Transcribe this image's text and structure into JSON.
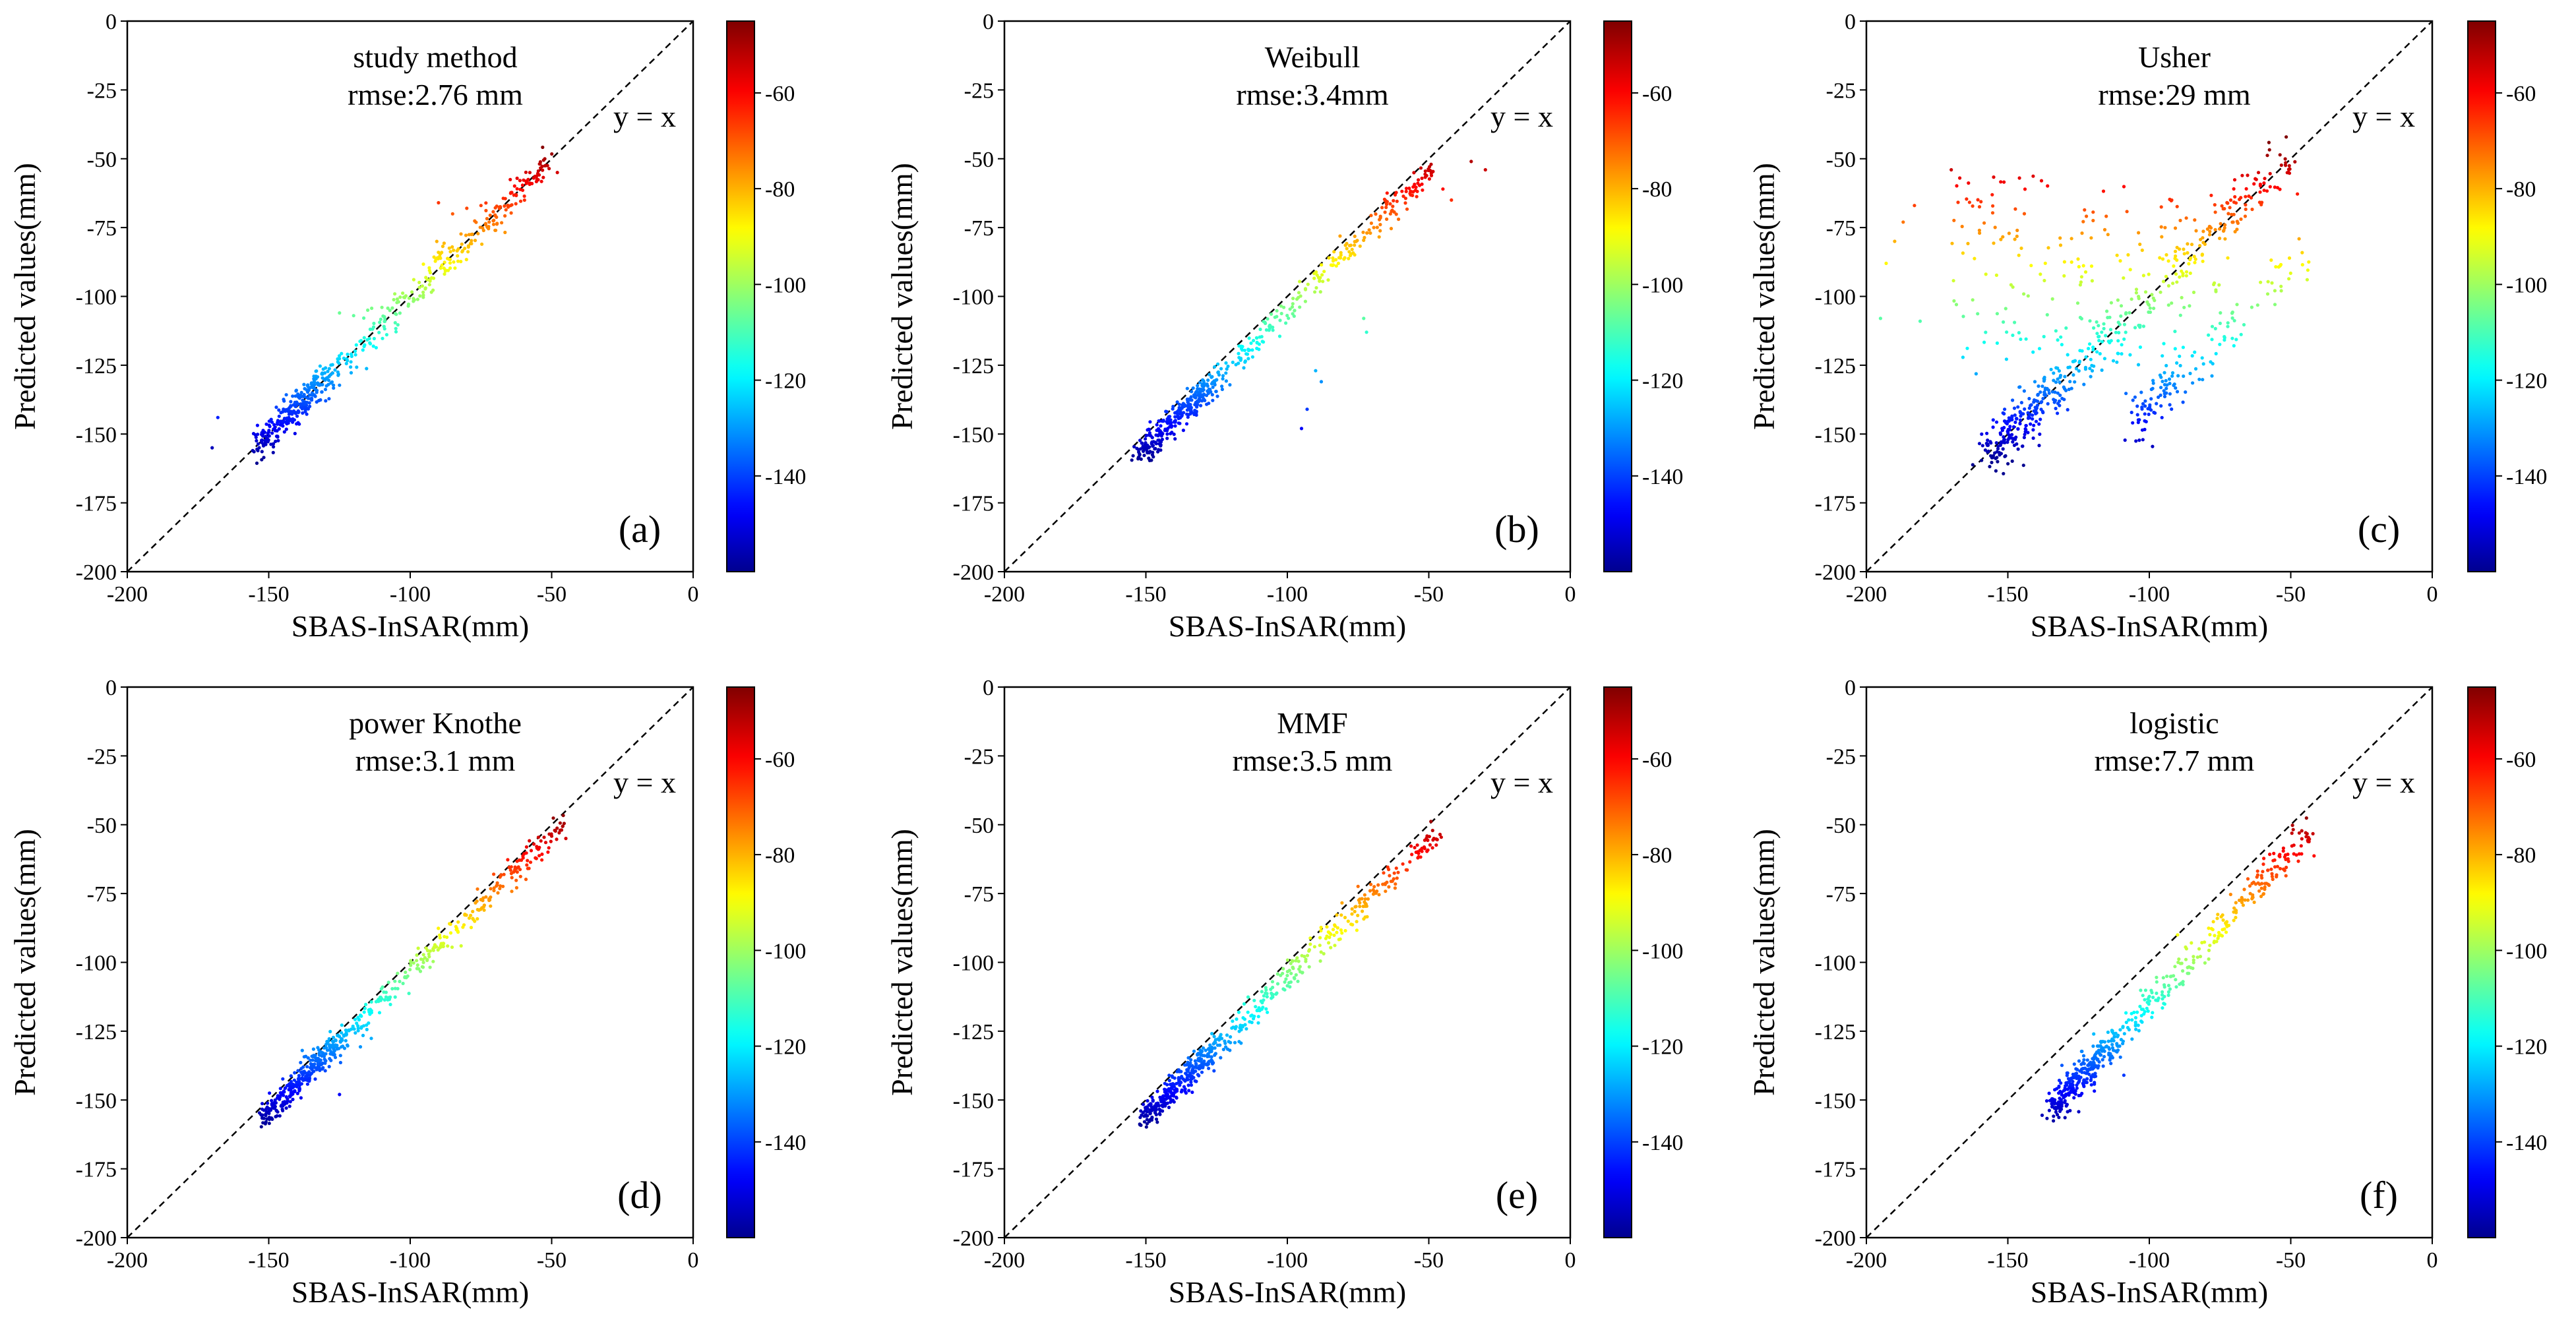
{
  "figure": {
    "shared": {
      "xlabel": "SBAS-InSAR(mm)",
      "ylabel": "Predicted values(mm)",
      "identity_label": "y = x",
      "xlim": [
        -200,
        0
      ],
      "ylim": [
        -200,
        0
      ],
      "x_ticks": [
        -200,
        -150,
        -100,
        -50,
        0
      ],
      "y_ticks": [
        0,
        -25,
        -50,
        -75,
        -100,
        -125,
        -150,
        -175,
        -200
      ],
      "colorbar_ticks": [
        -60,
        -80,
        -100,
        -120,
        -140
      ],
      "colorbar_range": [
        -160,
        -45
      ],
      "colormap": "jet",
      "jet_stops": [
        "#00008f",
        "#0000ff",
        "#00ffff",
        "#ffff00",
        "#ff0000",
        "#800000"
      ]
    }
  },
  "chart_data": [
    {
      "type": "scatter",
      "panel": "(a)",
      "title": "study method",
      "subtitle": "rmse:2.76 mm",
      "xlabel": "SBAS-InSAR(mm)",
      "ylabel": "Predicted values(mm)",
      "xlim": [
        -200,
        0
      ],
      "ylim": [
        -200,
        0
      ],
      "colorbar": {
        "range": [
          -160,
          -45
        ],
        "ticks": [
          -60,
          -80,
          -100,
          -120,
          -140
        ]
      },
      "identity_line": "y = x",
      "series": [
        {
          "name": "main",
          "x_range": [
            -155,
            -50
          ],
          "slope": 1.0,
          "intercept": 0,
          "spread": 3.0,
          "count": 520
        },
        {
          "name": "outliers",
          "points": [
            [
              -170,
              -155
            ],
            [
              -168,
              -144
            ],
            [
              -125,
              -106
            ],
            [
              -120,
              -107
            ],
            [
              -115,
              -105
            ],
            [
              -110,
              -104
            ],
            [
              -90,
              -66
            ],
            [
              -85,
              -70
            ],
            [
              -80,
              -68
            ],
            [
              -75,
              -67
            ],
            [
              -48,
              -55
            ]
          ]
        }
      ]
    },
    {
      "type": "scatter",
      "panel": "(b)",
      "title": "Weibull",
      "subtitle": "rmse:3.4mm",
      "xlabel": "SBAS-InSAR(mm)",
      "ylabel": "Predicted values(mm)",
      "xlim": [
        -200,
        0
      ],
      "ylim": [
        -200,
        0
      ],
      "colorbar": {
        "range": [
          -160,
          -45
        ],
        "ticks": [
          -60,
          -80,
          -100,
          -120,
          -140
        ]
      },
      "identity_line": "y = x",
      "series": [
        {
          "name": "main",
          "x_range": [
            -152,
            -48
          ],
          "slope": 1.0,
          "intercept": -5,
          "spread": 2.5,
          "count": 520
        },
        {
          "name": "outliers",
          "points": [
            [
              -95,
              -148
            ],
            [
              -93,
              -141
            ],
            [
              -90,
              -127
            ],
            [
              -88,
              -131
            ],
            [
              -73,
              -108
            ],
            [
              -72,
              -113
            ],
            [
              -45,
              -61
            ],
            [
              -42,
              -65
            ],
            [
              -35,
              -51
            ],
            [
              -30,
              -54
            ]
          ]
        }
      ]
    },
    {
      "type": "scatter",
      "panel": "(c)",
      "title": "Usher",
      "subtitle": "rmse:29 mm",
      "xlabel": "SBAS-InSAR(mm)",
      "ylabel": "Predicted values(mm)",
      "xlim": [
        -200,
        0
      ],
      "ylim": [
        -200,
        0
      ],
      "colorbar": {
        "range": [
          -160,
          -45
        ],
        "ticks": [
          -60,
          -80,
          -100,
          -120,
          -140
        ]
      },
      "identity_line": "y = x",
      "series": [
        {
          "name": "main",
          "x_range": [
            -158,
            -50
          ],
          "slope": 1.0,
          "intercept": 0,
          "spread": 4.5,
          "count": 420
        },
        {
          "name": "lower band",
          "x_range": [
            -105,
            -45
          ],
          "slope": 1.0,
          "intercept": -40,
          "spread": 5.0,
          "count": 130
        },
        {
          "name": "scatter cloud",
          "x_range": [
            -170,
            -70
          ],
          "y_range": [
            -130,
            -55
          ],
          "count": 190
        },
        {
          "name": "left outliers",
          "points": [
            [
              -195,
              -108
            ],
            [
              -193,
              -88
            ],
            [
              -190,
              -80
            ],
            [
              -187,
              -73
            ],
            [
              -183,
              -67
            ],
            [
              -181,
              -109
            ],
            [
              -170,
              -54
            ],
            [
              -167,
              -57
            ],
            [
              -160,
              -77
            ]
          ]
        }
      ]
    },
    {
      "type": "scatter",
      "panel": "(d)",
      "title": "power Knothe",
      "subtitle": "rmse:3.1 mm",
      "xlabel": "SBAS-InSAR(mm)",
      "ylabel": "Predicted values(mm)",
      "xlim": [
        -200,
        0
      ],
      "ylim": [
        -200,
        0
      ],
      "colorbar": {
        "range": [
          -160,
          -45
        ],
        "ticks": [
          -60,
          -80,
          -100,
          -120,
          -140
        ]
      },
      "identity_line": "y = x",
      "series": [
        {
          "name": "main",
          "x_range": [
            -152,
            -45
          ],
          "slope": 1.0,
          "intercept": -4,
          "spread": 2.5,
          "count": 560
        },
        {
          "name": "outliers",
          "points": [
            [
              -125,
              -148
            ],
            [
              -82,
              -94
            ],
            [
              -47,
              -52
            ],
            [
              -45,
              -55
            ]
          ]
        }
      ]
    },
    {
      "type": "scatter",
      "panel": "(e)",
      "title": "MMF",
      "subtitle": "rmse:3.5 mm",
      "xlabel": "SBAS-InSAR(mm)",
      "ylabel": "Predicted values(mm)",
      "xlim": [
        -200,
        0
      ],
      "ylim": [
        -200,
        0
      ],
      "colorbar": {
        "range": [
          -160,
          -45
        ],
        "ticks": [
          -60,
          -80,
          -100,
          -120,
          -140
        ]
      },
      "identity_line": "y = x",
      "series": [
        {
          "name": "main",
          "x_range": [
            -152,
            -47
          ],
          "slope": 1.0,
          "intercept": -6,
          "spread": 2.5,
          "count": 560
        }
      ]
    },
    {
      "type": "scatter",
      "panel": "(f)",
      "title": "logistic",
      "subtitle": "rmse:7.7 mm",
      "xlabel": "SBAS-InSAR(mm)",
      "ylabel": "Predicted values(mm)",
      "xlim": [
        -200,
        0
      ],
      "ylim": [
        -200,
        0
      ],
      "colorbar": {
        "range": [
          -160,
          -45
        ],
        "ticks": [
          -60,
          -80,
          -100,
          -120,
          -140
        ]
      },
      "identity_line": "y = x",
      "series": [
        {
          "name": "main",
          "x_range": [
            -135,
            -43
          ],
          "slope": 1.1,
          "intercept": -5,
          "spread": 3.0,
          "count": 520
        },
        {
          "name": "outliers",
          "points": [
            [
              -109,
              -141
            ],
            [
              -90,
              -90
            ],
            [
              -47,
              -53
            ]
          ]
        }
      ]
    }
  ]
}
